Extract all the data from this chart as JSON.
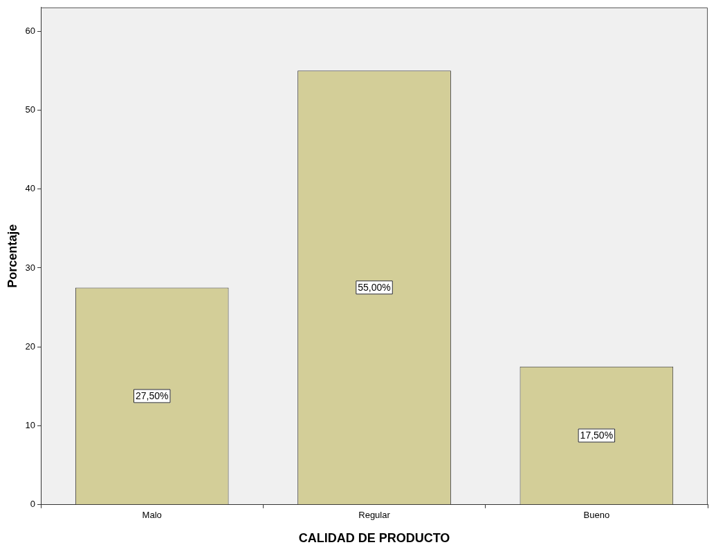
{
  "chart_data": {
    "type": "bar",
    "xlabel": "CALIDAD DE PRODUCTO",
    "ylabel": "Porcentaje",
    "categories": [
      "Malo",
      "Regular",
      "Bueno"
    ],
    "values": [
      27.5,
      55,
      17.5
    ],
    "color": "#d3ce98",
    "value_labels": [
      "27,50%",
      "55,00%",
      "17,50%"
    ],
    "ylim": [
      0,
      63
    ],
    "yticks": [
      0,
      10,
      20,
      30,
      40,
      50,
      60
    ],
    "grid": false,
    "legend": false
  }
}
